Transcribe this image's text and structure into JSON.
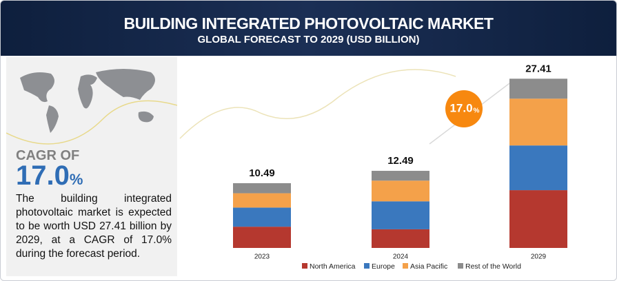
{
  "chart_data": {
    "type": "stacked_bar",
    "title": "BUILDING INTEGRATED PHOTOVOLTAIC MARKET",
    "subtitle": "GLOBAL FORECAST TO 2029 (USD BILLION)",
    "categories": [
      "2023",
      "2024",
      "2029"
    ],
    "series": [
      {
        "name": "North America",
        "color": "#b5382f",
        "values": [
          3.44,
          3.02,
          9.36
        ]
      },
      {
        "name": "Europe",
        "color": "#3a78be",
        "values": [
          3.1,
          4.53,
          7.24
        ]
      },
      {
        "name": "Asia Pacific",
        "color": "#f4a14a",
        "values": [
          2.32,
          3.35,
          7.58
        ]
      },
      {
        "name": "Rest of the World",
        "color": "#8c8c8c",
        "values": [
          1.63,
          1.59,
          3.23
        ]
      }
    ],
    "totals": [
      10.49,
      12.49,
      27.41
    ],
    "ylim": [
      0,
      28
    ],
    "cagr_label": "CAGR OF",
    "cagr_value": "17.0",
    "cagr_unit": "%",
    "description": "The building integrated photovoltaic market is expected to be worth USD 27.41 billion by 2029, at a CAGR of 17.0% during the forecast period."
  }
}
